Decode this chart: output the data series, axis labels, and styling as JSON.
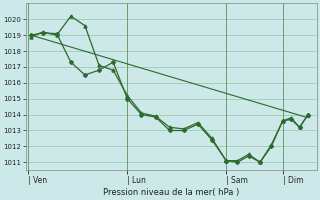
{
  "background_color": "#cce8e8",
  "grid_color": "#5a9a5a",
  "line_color": "#2d6a2d",
  "marker_color": "#2d6a2d",
  "xlabel_text": "Pression niveau de la mer( hPa )",
  "ylim": [
    1010.5,
    1021.0
  ],
  "yticks": [
    1011,
    1012,
    1013,
    1014,
    1015,
    1016,
    1017,
    1018,
    1019,
    1020
  ],
  "xtick_labels": [
    "| Ven",
    "| Lun",
    "| Sam",
    "| Dim"
  ],
  "xtick_positions": [
    0,
    3.5,
    7.0,
    9.0
  ],
  "series1_x": [
    0.1,
    0.5,
    1.0,
    1.5,
    2.0,
    2.5,
    3.0,
    3.5,
    4.0,
    4.5,
    5.0,
    5.5,
    6.0,
    6.5,
    7.0,
    7.4,
    7.8,
    8.2,
    8.6,
    9.0,
    9.3,
    9.6,
    9.9
  ],
  "series1_y": [
    1018.9,
    1019.2,
    1019.0,
    1020.2,
    1019.6,
    1017.1,
    1016.8,
    1015.2,
    1014.1,
    1013.9,
    1013.2,
    1013.1,
    1013.5,
    1012.5,
    1011.1,
    1011.1,
    1011.5,
    1011.0,
    1012.1,
    1013.6,
    1013.8,
    1013.2,
    1014.0
  ],
  "series2_x": [
    0.1,
    0.5,
    1.0,
    1.5,
    2.0,
    2.5,
    3.0,
    3.5,
    4.0,
    4.5,
    5.0,
    5.5,
    6.0,
    6.5,
    7.0,
    7.4,
    7.8,
    8.2,
    8.6,
    9.0,
    9.3,
    9.6,
    9.9
  ],
  "series2_y": [
    1019.0,
    1019.15,
    1019.1,
    1017.3,
    1016.5,
    1016.8,
    1017.3,
    1015.0,
    1014.0,
    1013.85,
    1013.0,
    1013.0,
    1013.4,
    1012.4,
    1011.1,
    1011.0,
    1011.4,
    1011.0,
    1012.0,
    1013.6,
    1013.7,
    1013.2,
    1014.0
  ],
  "trend_x": [
    0.1,
    9.9
  ],
  "trend_y": [
    1019.0,
    1013.8
  ],
  "xlim": [
    -0.1,
    10.2
  ]
}
